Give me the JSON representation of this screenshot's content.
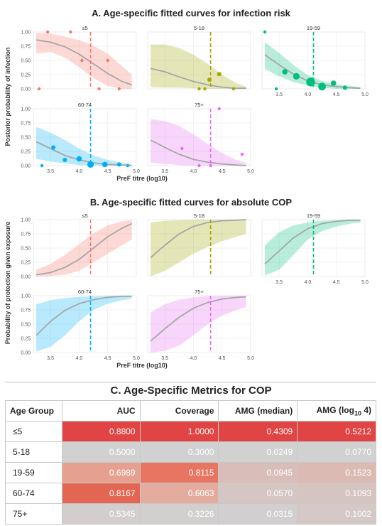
{
  "figure": {
    "section_a_title": "A. Age-specific fitted curves for infection risk",
    "section_b_title": "B. Age-specific fitted curves for absolute COP",
    "section_c_title": "C. Age-Specific Metrics for COP"
  },
  "chart_data": [
    {
      "type": "line",
      "title": "A. Age-specific fitted curves for infection risk",
      "xlabel": "PreF titre (log10)",
      "ylabel": "Posterior probability of infection",
      "xlim": [
        3.2,
        5.0
      ],
      "ylim": [
        0,
        1
      ],
      "x_ticks": [
        "3.5",
        "4.0",
        "4.5",
        "5.0"
      ],
      "y_ticks": [
        "0.00",
        "0.25",
        "0.50",
        "0.75",
        "1.00"
      ],
      "grid": true,
      "panels": [
        {
          "name": "≤5",
          "color": "#f8766d",
          "threshold": 4.2,
          "x": [
            3.25,
            3.5,
            3.75,
            4.0,
            4.25,
            4.5,
            4.75,
            4.92
          ],
          "fit": [
            0.86,
            0.82,
            0.74,
            0.61,
            0.44,
            0.27,
            0.13,
            0.07
          ],
          "lower": [
            0.62,
            0.65,
            0.55,
            0.38,
            0.19,
            0.05,
            0.0,
            0.0
          ],
          "upper": [
            0.98,
            0.97,
            0.92,
            0.86,
            0.76,
            0.62,
            0.4,
            0.25
          ],
          "points": [
            {
              "x": 3.45,
              "y": 1.0,
              "size": 2
            },
            {
              "x": 3.85,
              "y": 1.0,
              "size": 2
            },
            {
              "x": 4.05,
              "y": 0.5,
              "size": 2
            },
            {
              "x": 4.5,
              "y": 0.5,
              "size": 2
            },
            {
              "x": 3.3,
              "y": 0.0,
              "size": 2
            },
            {
              "x": 4.35,
              "y": 0.0,
              "size": 2
            },
            {
              "x": 4.7,
              "y": 0.0,
              "size": 2
            }
          ]
        },
        {
          "name": "5-18",
          "color": "#a3a500",
          "threshold": 4.3,
          "x": [
            3.25,
            3.5,
            3.75,
            4.0,
            4.25,
            4.5,
            4.75,
            4.92
          ],
          "fit": [
            0.36,
            0.3,
            0.21,
            0.13,
            0.07,
            0.03,
            0.01,
            0.01
          ],
          "lower": [
            0.03,
            0.02,
            0.02,
            0.01,
            0.0,
            0.0,
            0.0,
            0.0
          ],
          "upper": [
            0.78,
            0.78,
            0.72,
            0.6,
            0.44,
            0.25,
            0.1,
            0.04
          ],
          "points": [
            {
              "x": 4.2,
              "y": 0.0,
              "size": 2
            },
            {
              "x": 4.28,
              "y": 0.16,
              "size": 3
            },
            {
              "x": 4.45,
              "y": 0.26,
              "size": 3
            },
            {
              "x": 4.7,
              "y": 0.0,
              "size": 2
            },
            {
              "x": 4.1,
              "y": 0.0,
              "size": 2
            }
          ]
        },
        {
          "name": "19-59",
          "color": "#00bf7d",
          "threshold": 4.1,
          "x": [
            3.25,
            3.5,
            3.75,
            4.0,
            4.25,
            4.5,
            4.75,
            4.92
          ],
          "fit": [
            0.6,
            0.42,
            0.26,
            0.14,
            0.07,
            0.04,
            0.02,
            0.01
          ],
          "lower": [
            0.35,
            0.22,
            0.12,
            0.06,
            0.02,
            0.0,
            0.0,
            0.0
          ],
          "upper": [
            0.82,
            0.63,
            0.42,
            0.24,
            0.14,
            0.08,
            0.05,
            0.03
          ],
          "points": [
            {
              "x": 3.25,
              "y": 1.0,
              "size": 2
            },
            {
              "x": 3.45,
              "y": 0.0,
              "size": 2
            },
            {
              "x": 3.6,
              "y": 0.3,
              "size": 4
            },
            {
              "x": 3.8,
              "y": 0.22,
              "size": 5
            },
            {
              "x": 4.05,
              "y": 0.12,
              "size": 7
            },
            {
              "x": 4.25,
              "y": 0.04,
              "size": 6
            },
            {
              "x": 4.45,
              "y": 0.1,
              "size": 4
            },
            {
              "x": 4.65,
              "y": 0.02,
              "size": 3
            }
          ]
        },
        {
          "name": "60-74",
          "color": "#00b0f6",
          "threshold": 4.2,
          "x": [
            3.25,
            3.5,
            3.75,
            4.0,
            4.25,
            4.5,
            4.75,
            4.92
          ],
          "fit": [
            0.42,
            0.3,
            0.18,
            0.1,
            0.05,
            0.02,
            0.01,
            0.0
          ],
          "lower": [
            0.12,
            0.07,
            0.04,
            0.01,
            0.0,
            0.0,
            0.0,
            0.0
          ],
          "upper": [
            0.68,
            0.58,
            0.45,
            0.3,
            0.18,
            0.1,
            0.05,
            0.02
          ],
          "points": [
            {
              "x": 3.35,
              "y": 0.0,
              "size": 2
            },
            {
              "x": 3.55,
              "y": 0.32,
              "size": 3
            },
            {
              "x": 3.75,
              "y": 0.1,
              "size": 3
            },
            {
              "x": 4.0,
              "y": 0.12,
              "size": 4
            },
            {
              "x": 4.2,
              "y": 0.02,
              "size": 5
            },
            {
              "x": 4.45,
              "y": 0.02,
              "size": 4
            },
            {
              "x": 4.7,
              "y": 0.02,
              "size": 3
            },
            {
              "x": 4.85,
              "y": 0.0,
              "size": 2
            }
          ]
        },
        {
          "name": "75+",
          "color": "#e76bf3",
          "threshold": 4.3,
          "x": [
            3.25,
            3.5,
            3.75,
            4.0,
            4.25,
            4.5,
            4.75,
            4.92
          ],
          "fit": [
            0.45,
            0.32,
            0.2,
            0.11,
            0.06,
            0.03,
            0.01,
            0.0
          ],
          "lower": [
            0.05,
            0.03,
            0.01,
            0.0,
            0.0,
            0.0,
            0.0,
            0.0
          ],
          "upper": [
            0.82,
            0.78,
            0.7,
            0.55,
            0.38,
            0.22,
            0.1,
            0.05
          ],
          "points": [
            {
              "x": 3.8,
              "y": 0.3,
              "size": 2
            },
            {
              "x": 4.1,
              "y": 0.0,
              "size": 2
            },
            {
              "x": 4.45,
              "y": 1.0,
              "size": 2
            },
            {
              "x": 4.85,
              "y": 0.2,
              "size": 2
            },
            {
              "x": 4.3,
              "y": 0.0,
              "size": 2
            }
          ]
        }
      ]
    },
    {
      "type": "line",
      "title": "B. Age-specific fitted curves for absolute COP",
      "xlabel": "PreF titre (log10)",
      "ylabel": "Probability of protection given exposure",
      "xlim": [
        3.2,
        5.0
      ],
      "ylim": [
        0,
        1
      ],
      "x_ticks": [
        "3.5",
        "4.0",
        "4.5",
        "5.0"
      ],
      "y_ticks": [
        "0.00",
        "0.25",
        "0.50",
        "0.75",
        "1.00"
      ],
      "grid": true,
      "panels": [
        {
          "name": "≤5",
          "color": "#f8766d",
          "threshold": 4.2,
          "x": [
            3.25,
            3.5,
            3.75,
            4.0,
            4.25,
            4.5,
            4.75,
            4.92
          ],
          "fit": [
            0.03,
            0.07,
            0.16,
            0.3,
            0.5,
            0.7,
            0.85,
            0.93
          ],
          "lower": [
            0.0,
            0.01,
            0.03,
            0.1,
            0.25,
            0.4,
            0.55,
            0.65
          ],
          "upper": [
            0.12,
            0.22,
            0.38,
            0.57,
            0.76,
            0.9,
            0.97,
            0.99
          ],
          "points": []
        },
        {
          "name": "5-18",
          "color": "#a3a500",
          "threshold": 4.3,
          "x": [
            3.25,
            3.5,
            3.75,
            4.0,
            4.25,
            4.5,
            4.75,
            4.92
          ],
          "fit": [
            0.33,
            0.55,
            0.75,
            0.88,
            0.95,
            0.98,
            0.99,
            1.0
          ],
          "lower": [
            0.0,
            0.1,
            0.25,
            0.4,
            0.52,
            0.62,
            0.7,
            0.75
          ],
          "upper": [
            0.95,
            0.98,
            0.99,
            1.0,
            1.0,
            1.0,
            1.0,
            1.0
          ],
          "points": []
        },
        {
          "name": "19-59",
          "color": "#00bf7d",
          "threshold": 4.1,
          "x": [
            3.25,
            3.5,
            3.75,
            4.0,
            4.25,
            4.5,
            4.75,
            4.92
          ],
          "fit": [
            0.22,
            0.45,
            0.68,
            0.84,
            0.93,
            0.97,
            0.99,
            0.99
          ],
          "lower": [
            0.02,
            0.12,
            0.38,
            0.65,
            0.8,
            0.88,
            0.93,
            0.95
          ],
          "upper": [
            0.55,
            0.78,
            0.9,
            0.95,
            0.98,
            0.99,
            1.0,
            1.0
          ],
          "points": []
        },
        {
          "name": "60-74",
          "color": "#00b0f6",
          "threshold": 4.2,
          "x": [
            3.25,
            3.5,
            3.75,
            4.0,
            4.25,
            4.5,
            4.75,
            4.92
          ],
          "fit": [
            0.3,
            0.55,
            0.74,
            0.86,
            0.93,
            0.97,
            0.99,
            0.99
          ],
          "lower": [
            0.02,
            0.1,
            0.3,
            0.55,
            0.75,
            0.86,
            0.92,
            0.95
          ],
          "upper": [
            0.85,
            0.92,
            0.96,
            0.98,
            0.99,
            1.0,
            1.0,
            1.0
          ],
          "points": []
        },
        {
          "name": "75+",
          "color": "#e76bf3",
          "threshold": 4.3,
          "x": [
            3.25,
            3.5,
            3.75,
            4.0,
            4.25,
            4.5,
            4.75,
            4.92
          ],
          "fit": [
            0.2,
            0.42,
            0.62,
            0.78,
            0.88,
            0.94,
            0.97,
            0.98
          ],
          "lower": [
            0.0,
            0.03,
            0.12,
            0.3,
            0.5,
            0.65,
            0.75,
            0.8
          ],
          "upper": [
            0.7,
            0.85,
            0.93,
            0.97,
            0.99,
            1.0,
            1.0,
            1.0
          ],
          "points": []
        }
      ]
    },
    {
      "type": "table",
      "title": "C. Age-Specific Metrics for COP",
      "columns": [
        "Age Group",
        "AUC",
        "Coverage",
        "AMG (median)",
        "AMG (log10 4)"
      ],
      "rows": [
        {
          "group": "≤5",
          "cells": [
            {
              "text": "0.8800",
              "bg": "#e04444"
            },
            {
              "text": "1.0000",
              "bg": "#e04444"
            },
            {
              "text": "0.4309",
              "bg": "#e04444"
            },
            {
              "text": "0.5212",
              "bg": "#e04444"
            }
          ]
        },
        {
          "group": "5-18",
          "cells": [
            {
              "text": "0.5000",
              "bg": "#d1d1d1"
            },
            {
              "text": "0.3000",
              "bg": "#d1d1d1"
            },
            {
              "text": "0.0249",
              "bg": "#d1d1d1"
            },
            {
              "text": "0.0770",
              "bg": "#d1d1d1"
            }
          ]
        },
        {
          "group": "19-59",
          "cells": [
            {
              "text": "0.6989",
              "bg": "#e5a090"
            },
            {
              "text": "0.8115",
              "bg": "#e87562"
            },
            {
              "text": "0.0945",
              "bg": "#d9bdb8"
            },
            {
              "text": "0.1523",
              "bg": "#dbbab4"
            }
          ]
        },
        {
          "group": "60-74",
          "cells": [
            {
              "text": "0.8167",
              "bg": "#e26651"
            },
            {
              "text": "0.6063",
              "bg": "#e3ac9f"
            },
            {
              "text": "0.0570",
              "bg": "#d5c6c3"
            },
            {
              "text": "0.1093",
              "bg": "#d6c4c1"
            }
          ]
        },
        {
          "group": "75+",
          "cells": [
            {
              "text": "0.5345",
              "bg": "#d3cecd"
            },
            {
              "text": "0.3226",
              "bg": "#d2d0cf"
            },
            {
              "text": "0.0315",
              "bg": "#d1cfcf"
            },
            {
              "text": "0.1002",
              "bg": "#d4c9c7"
            }
          ]
        }
      ]
    }
  ]
}
